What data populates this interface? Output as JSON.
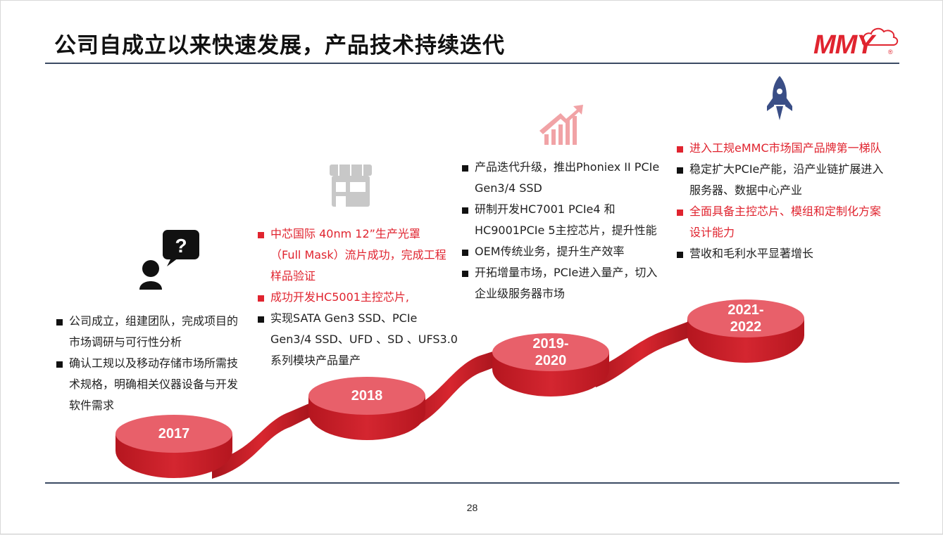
{
  "title": "公司自成立以来快速发展，产品技术持续迭代",
  "logo": {
    "text": "MMY",
    "reg": "®",
    "color": "#e0242f"
  },
  "page_number": "28",
  "colors": {
    "accent_red": "#e0242f",
    "disc_top": "#e8606a",
    "disc_side": "#c8202a",
    "rule": "#3b4a63",
    "rocket": "#3a4e86"
  },
  "milestones": [
    {
      "year_line1": "2017",
      "year_line2": "",
      "icon": "person-question-icon",
      "items": [
        {
          "text": "公司成立，组建团队，完成项目的市场调研与可行性分析",
          "lines": [
            "公司成立，组建团队，完成项目的",
            "市场调研与可行性分析"
          ],
          "red": false
        },
        {
          "text": "确认工规以及移动存储市场所需技术规格，明确相关仪器设备与开发软件需求",
          "lines": [
            "确认工规以及移动存储市场所需技",
            "术规格，明确相关仪器设备与开发",
            "软件需求"
          ],
          "red": false
        }
      ]
    },
    {
      "year_line1": "2018",
      "year_line2": "",
      "icon": "storefront-icon",
      "items": [
        {
          "lines": [
            "中芯国际 40nm 12”生产光罩",
            "（Full Mask）流片成功，完成工程",
            "样品验证"
          ],
          "red": true
        },
        {
          "lines": [
            "成功开发HC5001主控芯片,"
          ],
          "red": true
        },
        {
          "lines": [
            "实现SATA Gen3 SSD、PCIe",
            "Gen3/4 SSD、UFD 、SD 、UFS3.0",
            "系列模块产品量产"
          ],
          "red": false
        }
      ]
    },
    {
      "year_line1": "2019-",
      "year_line2": "2020",
      "icon": "growth-chart-icon",
      "items": [
        {
          "lines": [
            "产品迭代升级，推出Phoniex II PCIe",
            "Gen3/4 SSD"
          ],
          "red": false
        },
        {
          "lines": [
            "研制开发HC7001 PCIe4 和",
            "HC9001PCIe 5主控芯片，提升性能"
          ],
          "red": false
        },
        {
          "lines": [
            "OEM传统业务，提升生产效率"
          ],
          "red": false
        },
        {
          "lines": [
            "开拓增量市场，PCIe进入量产，切入",
            "企业级服务器市场"
          ],
          "red": false
        }
      ]
    },
    {
      "year_line1": "2021-",
      "year_line2": "2022",
      "icon": "rocket-icon",
      "items": [
        {
          "lines": [
            "进入工规eMMC市场国产品牌第一梯队"
          ],
          "red": true
        },
        {
          "lines": [
            "稳定扩大PCIe产能，沿产业链扩展进入",
            "服务器、数据中心产业"
          ],
          "red": false
        },
        {
          "lines": [
            "全面具备主控芯片、模组和定制化方案",
            "设计能力"
          ],
          "red": true
        },
        {
          "lines": [
            "营收和毛利水平显著增长"
          ],
          "red": false
        }
      ]
    }
  ]
}
